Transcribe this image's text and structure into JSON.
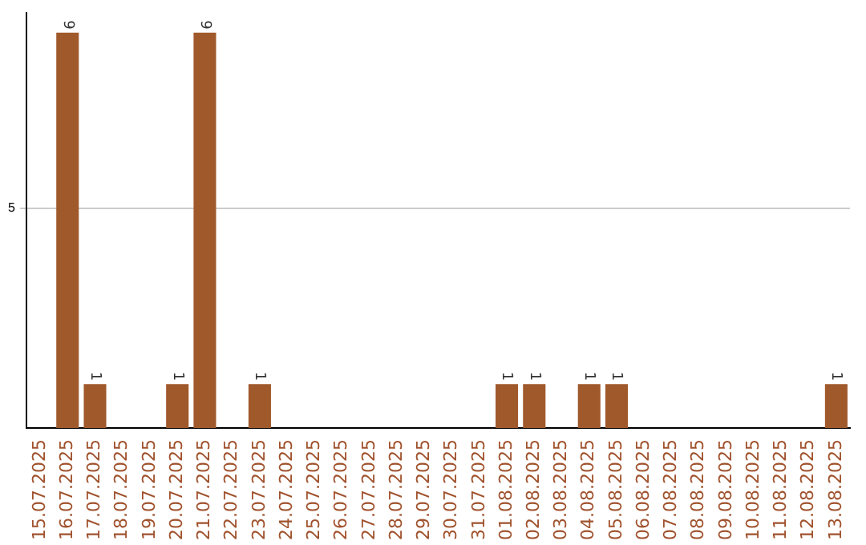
{
  "chart_data": {
    "type": "bar",
    "categories": [
      "15.07.2025",
      "16.07.2025",
      "17.07.2025",
      "18.07.2025",
      "19.07.2025",
      "20.07.2025",
      "21.07.2025",
      "22.07.2025",
      "23.07.2025",
      "24.07.2025",
      "25.07.2025",
      "26.07.2025",
      "27.07.2025",
      "28.07.2025",
      "29.07.2025",
      "30.07.2025",
      "31.07.2025",
      "01.08.2025",
      "02.08.2025",
      "03.08.2025",
      "04.08.2025",
      "05.08.2025",
      "06.08.2025",
      "07.08.2025",
      "08.08.2025",
      "09.08.2025",
      "10.08.2025",
      "11.08.2025",
      "12.08.2025",
      "13.08.2025"
    ],
    "values": [
      0,
      9,
      1,
      0,
      0,
      1,
      9,
      0,
      1,
      0,
      0,
      0,
      0,
      0,
      0,
      0,
      0,
      1,
      1,
      0,
      1,
      1,
      0,
      0,
      0,
      0,
      0,
      0,
      0,
      1
    ],
    "value_labels": [
      null,
      "9",
      "1",
      null,
      null,
      "1",
      "9",
      null,
      "1",
      null,
      null,
      null,
      null,
      null,
      null,
      null,
      null,
      "1",
      "1",
      null,
      "1",
      "1",
      null,
      null,
      null,
      null,
      null,
      null,
      null,
      "1"
    ],
    "color": "#a0592b",
    "ylim": [
      0,
      9.45
    ],
    "yticks": [
      5
    ],
    "grid": "y",
    "legend": false
  }
}
